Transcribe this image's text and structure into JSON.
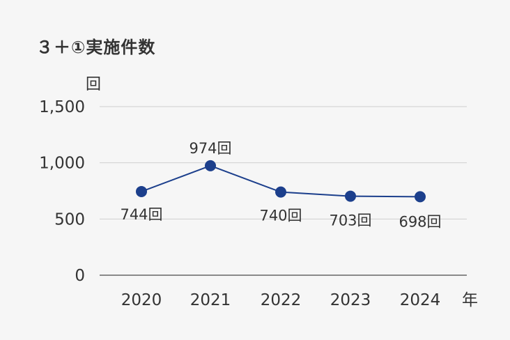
{
  "chart_data": {
    "type": "line",
    "title": "３＋①実施件数",
    "ylabel": "回",
    "xlabel": "年",
    "categories": [
      "2020",
      "2021",
      "2022",
      "2023",
      "2024"
    ],
    "series": [
      {
        "values": [
          744,
          974,
          740,
          703,
          698
        ],
        "labels": [
          "744回",
          "974回",
          "740回",
          "703回",
          "698回"
        ],
        "color": "#1c3f8c"
      }
    ],
    "y_ticks": [
      "0",
      "500",
      "1,000",
      "1,500"
    ],
    "ylim": [
      0,
      1500
    ],
    "grid": true,
    "legend": "none"
  }
}
